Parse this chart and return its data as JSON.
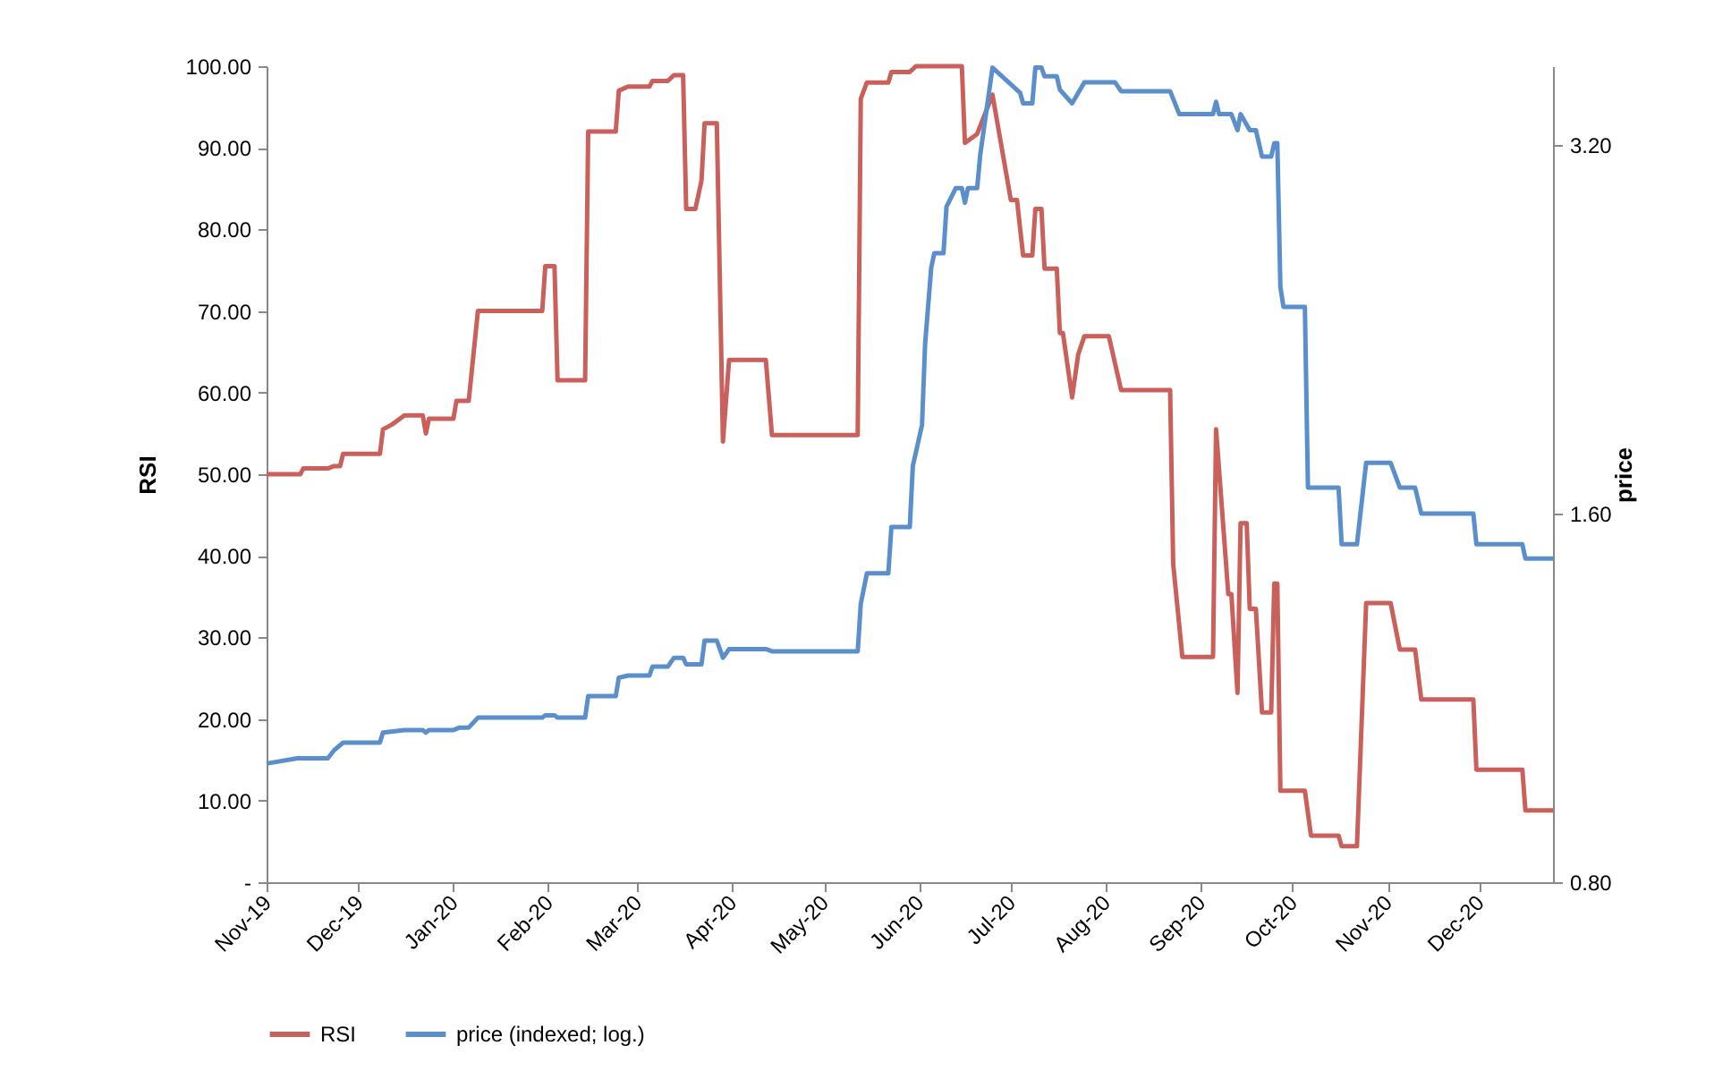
{
  "chart_data": {
    "type": "line",
    "ylabel": "RSI",
    "y2label": "price",
    "legend": "bottom",
    "xlim": [
      "2019-11-01",
      "2020-12-25"
    ],
    "xticks": [
      {
        "value": "2019-11-01",
        "label": "Nov-19"
      },
      {
        "value": "2019-12-01",
        "label": "Dec-19"
      },
      {
        "value": "2020-01-01",
        "label": "Jan-20"
      },
      {
        "value": "2020-02-01",
        "label": "Feb-20"
      },
      {
        "value": "2020-03-01",
        "label": "Mar-20"
      },
      {
        "value": "2020-04-01",
        "label": "Apr-20"
      },
      {
        "value": "2020-05-01",
        "label": "May-20"
      },
      {
        "value": "2020-06-01",
        "label": "Jun-20"
      },
      {
        "value": "2020-07-01",
        "label": "Jul-20"
      },
      {
        "value": "2020-08-01",
        "label": "Aug-20"
      },
      {
        "value": "2020-09-01",
        "label": "Sep-20"
      },
      {
        "value": "2020-10-01",
        "label": "Oct-20"
      },
      {
        "value": "2020-11-01",
        "label": "Nov-20"
      },
      {
        "value": "2020-12-01",
        "label": "Dec-20"
      }
    ],
    "ylim": [
      0,
      100
    ],
    "yticks": [
      {
        "value": 0,
        "label": "-"
      },
      {
        "value": 10,
        "label": "10.00"
      },
      {
        "value": 20,
        "label": "20.00"
      },
      {
        "value": 30,
        "label": "30.00"
      },
      {
        "value": 40,
        "label": "40.00"
      },
      {
        "value": 50,
        "label": "50.00"
      },
      {
        "value": 60,
        "label": "60.00"
      },
      {
        "value": 70,
        "label": "70.00"
      },
      {
        "value": 80,
        "label": "80.00"
      },
      {
        "value": 90,
        "label": "90.00"
      },
      {
        "value": 100,
        "label": "100.00"
      }
    ],
    "log": "y2",
    "y2lim": [
      0.8,
      3.71
    ],
    "y2ticks": [
      {
        "value": 0.8,
        "label": "0.80"
      },
      {
        "value": 1.6,
        "label": "1.60"
      },
      {
        "value": 3.2,
        "label": "3.20"
      }
    ],
    "series": [
      {
        "name": "RSI",
        "color": "#c9605b",
        "x": [
          "2019-11-01",
          "2019-11-12",
          "2019-11-13",
          "2019-11-21",
          "2019-11-23",
          "2019-11-25",
          "2019-11-26",
          "2019-12-08",
          "2019-12-09",
          "2019-12-12",
          "2019-12-16",
          "2019-12-22",
          "2019-12-23",
          "2019-12-24",
          "2020-01-01",
          "2020-01-02",
          "2020-01-06",
          "2020-01-09",
          "2020-01-30",
          "2020-01-31",
          "2020-02-03",
          "2020-02-04",
          "2020-02-13",
          "2020-02-14",
          "2020-02-23",
          "2020-02-24",
          "2020-02-27",
          "2020-03-05",
          "2020-03-06",
          "2020-03-11",
          "2020-03-13",
          "2020-03-16",
          "2020-03-17",
          "2020-03-20",
          "2020-03-22",
          "2020-03-23",
          "2020-03-27",
          "2020-03-29",
          "2020-03-31",
          "2020-04-12",
          "2020-04-14",
          "2020-05-12",
          "2020-05-13",
          "2020-05-15",
          "2020-05-22",
          "2020-05-23",
          "2020-05-29",
          "2020-05-31",
          "2020-06-15",
          "2020-06-16",
          "2020-06-20",
          "2020-06-25",
          "2020-07-01",
          "2020-07-03",
          "2020-07-05",
          "2020-07-08",
          "2020-07-09",
          "2020-07-11",
          "2020-07-12",
          "2020-07-16",
          "2020-07-17",
          "2020-07-18",
          "2020-07-21",
          "2020-07-23",
          "2020-07-25",
          "2020-08-02",
          "2020-08-06",
          "2020-08-22",
          "2020-08-23",
          "2020-08-26",
          "2020-09-05",
          "2020-09-06",
          "2020-09-10",
          "2020-09-11",
          "2020-09-13",
          "2020-09-14",
          "2020-09-16",
          "2020-09-17",
          "2020-09-19",
          "2020-09-21",
          "2020-09-24",
          "2020-09-25",
          "2020-09-26",
          "2020-09-27",
          "2020-10-05",
          "2020-10-07",
          "2020-10-16",
          "2020-10-17",
          "2020-10-22",
          "2020-10-25",
          "2020-11-02",
          "2020-11-05",
          "2020-11-10",
          "2020-11-12",
          "2020-11-29",
          "2020-11-30",
          "2020-12-15",
          "2020-12-16",
          "2020-12-25"
        ],
        "values": [
          50.0,
          50.0,
          50.7,
          50.7,
          51.0,
          51.0,
          52.5,
          52.5,
          55.5,
          56.1,
          57.2,
          57.2,
          55.0,
          56.8,
          56.8,
          59.0,
          59.0,
          70.0,
          70.0,
          75.5,
          75.5,
          61.5,
          61.5,
          92.0,
          92.0,
          97.0,
          97.5,
          97.5,
          98.2,
          98.2,
          98.9,
          98.9,
          82.5,
          82.5,
          86.0,
          93.0,
          93.0,
          54.0,
          64.0,
          64.0,
          54.8,
          54.8,
          96.0,
          98.0,
          98.0,
          99.3,
          99.3,
          100.0,
          100.0,
          90.6,
          91.7,
          96.5,
          83.6,
          83.6,
          76.8,
          76.8,
          82.5,
          82.5,
          75.2,
          75.2,
          67.3,
          67.3,
          59.4,
          64.7,
          66.9,
          66.9,
          60.3,
          60.3,
          39.0,
          27.6,
          27.6,
          55.5,
          35.3,
          35.3,
          23.2,
          44.0,
          44.0,
          33.5,
          33.5,
          20.8,
          20.8,
          36.6,
          36.6,
          11.2,
          11.2,
          5.7,
          5.7,
          4.4,
          4.4,
          34.2,
          34.2,
          28.5,
          28.5,
          22.4,
          22.4,
          13.8,
          13.8,
          8.8,
          8.8
        ]
      },
      {
        "name": "price (indexed; log.)",
        "color": "#5b8fcb",
        "axis": "y2",
        "x": [
          "2019-11-01",
          "2019-11-11",
          "2019-11-21",
          "2019-11-23",
          "2019-11-26",
          "2019-12-08",
          "2019-12-09",
          "2019-12-16",
          "2019-12-22",
          "2019-12-23",
          "2019-12-24",
          "2020-01-01",
          "2020-01-03",
          "2020-01-06",
          "2020-01-09",
          "2020-01-30",
          "2020-01-31",
          "2020-02-03",
          "2020-02-04",
          "2020-02-13",
          "2020-02-14",
          "2020-02-23",
          "2020-02-24",
          "2020-02-27",
          "2020-03-05",
          "2020-03-06",
          "2020-03-11",
          "2020-03-13",
          "2020-03-16",
          "2020-03-17",
          "2020-03-22",
          "2020-03-23",
          "2020-03-27",
          "2020-03-29",
          "2020-03-31",
          "2020-04-12",
          "2020-04-14",
          "2020-05-12",
          "2020-05-13",
          "2020-05-15",
          "2020-05-22",
          "2020-05-23",
          "2020-05-29",
          "2020-05-30",
          "2020-06-02",
          "2020-06-03",
          "2020-06-05",
          "2020-06-06",
          "2020-06-09",
          "2020-06-10",
          "2020-06-13",
          "2020-06-15",
          "2020-06-16",
          "2020-06-17",
          "2020-06-20",
          "2020-06-21",
          "2020-06-25",
          "2020-07-04",
          "2020-07-05",
          "2020-07-08",
          "2020-07-09",
          "2020-07-11",
          "2020-07-12",
          "2020-07-16",
          "2020-07-17",
          "2020-07-21",
          "2020-07-25",
          "2020-08-04",
          "2020-08-06",
          "2020-08-22",
          "2020-08-25",
          "2020-09-05",
          "2020-09-06",
          "2020-09-07",
          "2020-09-11",
          "2020-09-13",
          "2020-09-14",
          "2020-09-17",
          "2020-09-19",
          "2020-09-21",
          "2020-09-24",
          "2020-09-25",
          "2020-09-26",
          "2020-09-27",
          "2020-09-28",
          "2020-10-05",
          "2020-10-06",
          "2020-10-16",
          "2020-10-17",
          "2020-10-22",
          "2020-10-25",
          "2020-11-02",
          "2020-11-05",
          "2020-11-10",
          "2020-11-12",
          "2020-11-29",
          "2020-11-30",
          "2020-12-15",
          "2020-12-16",
          "2020-12-25"
        ],
        "values": [
          1.0,
          1.01,
          1.01,
          1.025,
          1.04,
          1.04,
          1.06,
          1.065,
          1.065,
          1.06,
          1.065,
          1.065,
          1.07,
          1.07,
          1.09,
          1.09,
          1.095,
          1.095,
          1.09,
          1.09,
          1.135,
          1.135,
          1.175,
          1.18,
          1.18,
          1.2,
          1.2,
          1.22,
          1.22,
          1.205,
          1.205,
          1.26,
          1.26,
          1.22,
          1.24,
          1.24,
          1.235,
          1.235,
          1.35,
          1.43,
          1.43,
          1.56,
          1.56,
          1.75,
          1.89,
          2.2,
          2.54,
          2.61,
          2.61,
          2.85,
          2.95,
          2.95,
          2.87,
          2.95,
          2.95,
          3.14,
          3.7,
          3.53,
          3.46,
          3.46,
          3.7,
          3.7,
          3.64,
          3.64,
          3.55,
          3.46,
          3.6,
          3.6,
          3.54,
          3.54,
          3.39,
          3.39,
          3.47,
          3.39,
          3.39,
          3.29,
          3.39,
          3.29,
          3.29,
          3.13,
          3.13,
          3.21,
          3.21,
          2.45,
          2.36,
          2.36,
          1.68,
          1.68,
          1.51,
          1.51,
          1.76,
          1.76,
          1.68,
          1.68,
          1.6,
          1.6,
          1.51,
          1.51,
          1.47,
          1.47
        ]
      }
    ]
  }
}
